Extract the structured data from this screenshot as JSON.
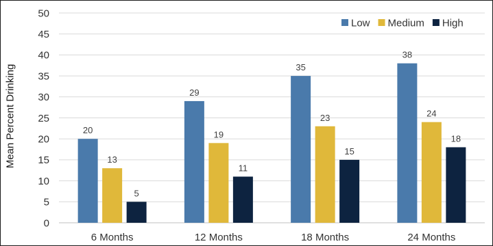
{
  "chart_data": {
    "type": "bar",
    "title": "",
    "xlabel": "",
    "ylabel": "Mean Percent Drinking",
    "ylim": [
      0,
      50
    ],
    "yticks": [
      0,
      5,
      10,
      15,
      20,
      25,
      30,
      35,
      40,
      45,
      50
    ],
    "grid": true,
    "legend_position": "top-right",
    "categories": [
      "6 Months",
      "12 Months",
      "18 Months",
      "24 Months"
    ],
    "series": [
      {
        "name": "Low",
        "color": "#4a7aab",
        "values": [
          20,
          29,
          35,
          38
        ]
      },
      {
        "name": "Medium",
        "color": "#e0b83a",
        "values": [
          13,
          19,
          23,
          24
        ]
      },
      {
        "name": "High",
        "color": "#0d2340",
        "values": [
          5,
          11,
          15,
          18
        ]
      }
    ]
  }
}
